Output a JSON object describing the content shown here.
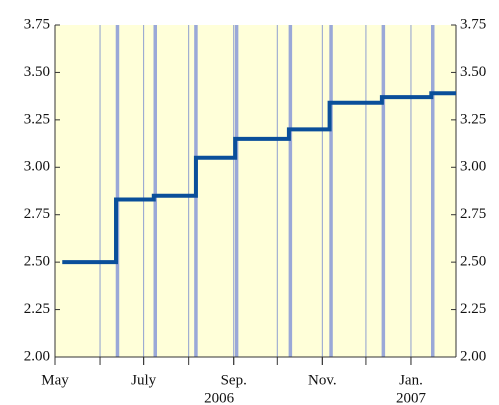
{
  "chart_data": {
    "type": "line",
    "x": [
      "2006-05-06",
      "2006-06-12",
      "2006-06-12",
      "2006-07-08",
      "2006-07-08",
      "2006-08-06",
      "2006-08-06",
      "2006-09-02",
      "2006-09-02",
      "2006-10-09",
      "2006-10-09",
      "2006-11-06",
      "2006-11-06",
      "2006-12-12",
      "2006-12-12",
      "2007-01-15",
      "2007-01-15",
      "2007-02-01"
    ],
    "series": [
      {
        "color": "#0a4f9a",
        "values": [
          2.5,
          2.5,
          2.83,
          2.83,
          2.85,
          2.85,
          3.05,
          3.05,
          3.15,
          3.15,
          3.2,
          3.2,
          3.34,
          3.34,
          3.37,
          3.37,
          3.39,
          3.39
        ]
      }
    ],
    "event_dates": [
      "2006-06-13",
      "2006-07-09",
      "2006-08-06",
      "2006-09-03",
      "2006-10-10",
      "2006-11-07",
      "2006-12-13",
      "2007-01-16"
    ],
    "event_color": "#9aa8d8",
    "xlim": [
      "2006-05-01",
      "2007-02-01"
    ],
    "xgrid": [
      "2006-06-01",
      "2006-07-01",
      "2006-08-01",
      "2006-09-01",
      "2006-10-01",
      "2006-11-01",
      "2006-12-01",
      "2007-01-01"
    ],
    "xticks": [
      {
        "value": "2006-05-01",
        "label": "May"
      },
      {
        "value": "2006-07-01",
        "label": "July"
      },
      {
        "value": "2006-09-01",
        "label": "Sep."
      },
      {
        "value": "2006-11-01",
        "label": "Nov."
      },
      {
        "value": "2007-01-01",
        "label": "Jan."
      }
    ],
    "year_labels": [
      {
        "value": "2006-08-22",
        "label": "2006"
      },
      {
        "value": "2007-01-01",
        "label": "2007"
      }
    ],
    "ylim": [
      2.0,
      3.75
    ],
    "yticks": [
      {
        "value": 2.0,
        "label": "2.00"
      },
      {
        "value": 2.25,
        "label": "2.25"
      },
      {
        "value": 2.5,
        "label": "2.50"
      },
      {
        "value": 2.75,
        "label": "2.75"
      },
      {
        "value": 3.0,
        "label": "3.00"
      },
      {
        "value": 3.25,
        "label": "3.25"
      },
      {
        "value": 3.5,
        "label": "3.50"
      },
      {
        "value": 3.75,
        "label": "3.75"
      }
    ],
    "y2lim": [
      2.0,
      3.75
    ],
    "y2ticks": [
      {
        "value": 2.0,
        "label": "2.00"
      },
      {
        "value": 2.25,
        "label": "2.25"
      },
      {
        "value": 2.5,
        "label": "2.50"
      },
      {
        "value": 2.75,
        "label": "2.75"
      },
      {
        "value": 3.0,
        "label": "3.00"
      },
      {
        "value": 3.25,
        "label": "3.25"
      },
      {
        "value": 3.5,
        "label": "3.50"
      },
      {
        "value": 3.75,
        "label": "3.75"
      }
    ],
    "grid": true,
    "background": "#ffffd9"
  }
}
